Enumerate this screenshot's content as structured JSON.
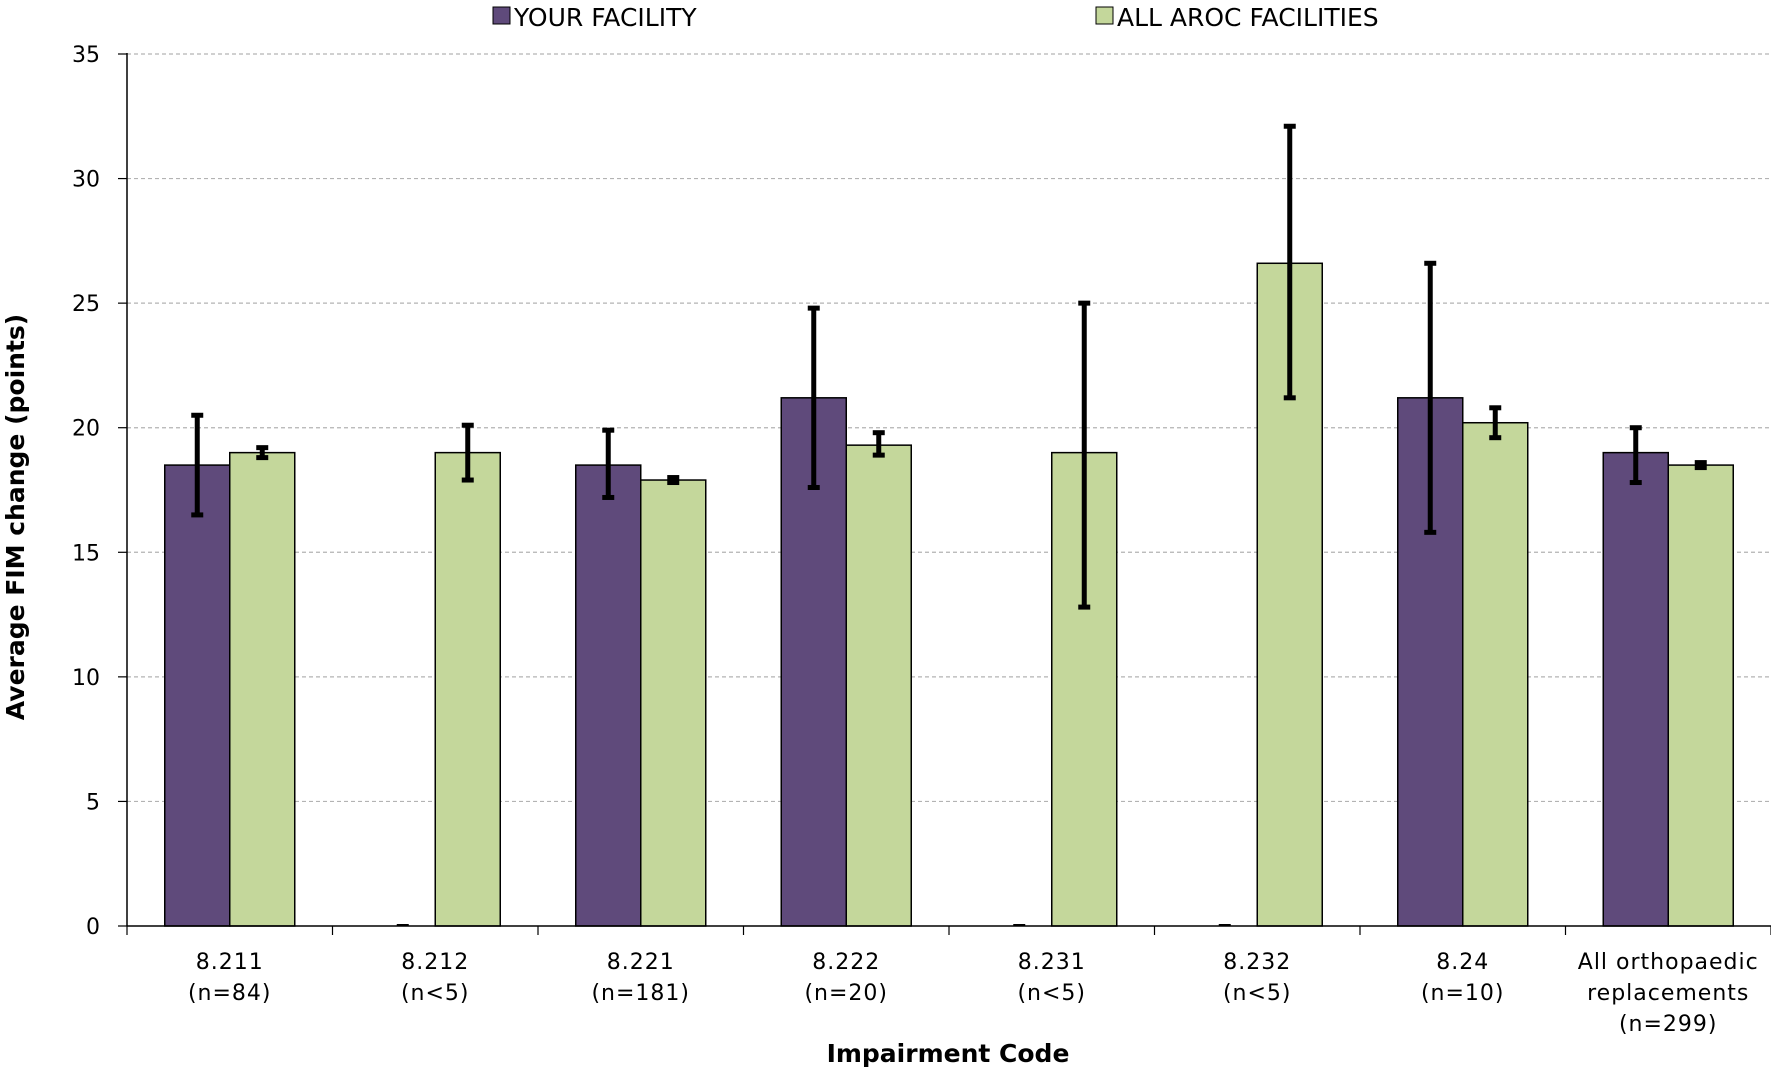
{
  "chart_data": {
    "type": "bar",
    "xlabel": "Impairment Code",
    "ylabel": "Average FIM change (points)",
    "ylim": [
      0,
      35
    ],
    "yticks": [
      0,
      5,
      10,
      15,
      20,
      25,
      30,
      35
    ],
    "grid": "horizontal dashed",
    "legend_position": "top",
    "categories": [
      [
        "8.211",
        "(n=84)"
      ],
      [
        "8.212",
        "(n<5)"
      ],
      [
        "8.221",
        "(n=181)"
      ],
      [
        "8.222",
        "(n=20)"
      ],
      [
        "8.231",
        "(n<5)"
      ],
      [
        "8.232",
        "(n<5)"
      ],
      [
        "8.24",
        "(n=10)"
      ],
      [
        "All orthopaedic",
        "replacements",
        "(n=299)"
      ]
    ],
    "series": [
      {
        "name": "YOUR FACILITY",
        "color": "#5f4a7b",
        "values": [
          18.5,
          0,
          18.5,
          21.2,
          0,
          0,
          21.2,
          19.0
        ],
        "error_low": [
          16.5,
          null,
          17.2,
          17.6,
          null,
          null,
          15.8,
          17.8
        ],
        "error_high": [
          20.5,
          null,
          19.9,
          24.8,
          null,
          null,
          26.6,
          20.0
        ]
      },
      {
        "name": "ALL AROC FACILITIES",
        "color": "#c4d79b",
        "values": [
          19.0,
          19.0,
          17.9,
          19.3,
          19.0,
          26.6,
          20.2,
          18.5
        ],
        "error_low": [
          18.8,
          17.9,
          17.8,
          18.9,
          12.8,
          21.2,
          19.6,
          18.4
        ],
        "error_high": [
          19.2,
          20.1,
          18.0,
          19.8,
          25.0,
          32.1,
          20.8,
          18.6
        ]
      }
    ]
  }
}
